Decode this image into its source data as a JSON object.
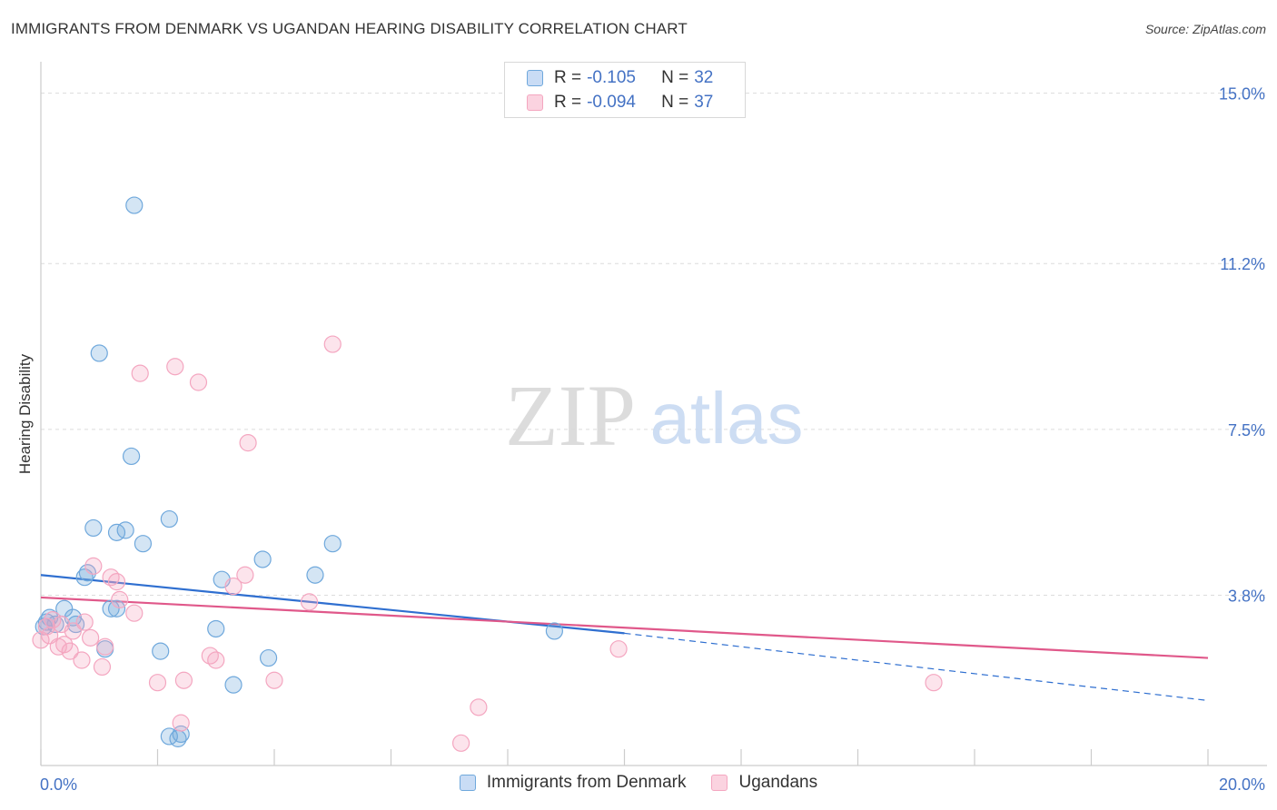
{
  "title": "IMMIGRANTS FROM DENMARK VS UGANDAN HEARING DISABILITY CORRELATION CHART",
  "source": "Source: ZipAtlas.com",
  "watermark": {
    "zip": "ZIP",
    "atlas": "atlas"
  },
  "legend_top": [
    {
      "r_label": "R =",
      "r_value": "-0.105",
      "n_label": "N =",
      "n_value": "32",
      "color": "#6fa8dc"
    },
    {
      "r_label": "R =",
      "r_value": "-0.094",
      "n_label": "N =",
      "n_value": "37",
      "color": "#f4a6c0"
    }
  ],
  "legend_bottom": [
    {
      "label": "Immigrants from Denmark",
      "color": "#6fa8dc"
    },
    {
      "label": "Ugandans",
      "color": "#f4a6c0"
    }
  ],
  "chart_data": {
    "type": "scatter",
    "title": "IMMIGRANTS FROM DENMARK VS UGANDAN HEARING DISABILITY CORRELATION CHART",
    "xlabel": "",
    "ylabel": "Hearing Disability",
    "xlim": [
      0,
      20
    ],
    "ylim": [
      0,
      15.5
    ],
    "x_tick_labels": [
      {
        "value": 0,
        "label": "0.0%"
      },
      {
        "value": 20,
        "label": "20.0%"
      }
    ],
    "y_tick_labels": [
      {
        "value": 3.8,
        "label": "3.8%"
      },
      {
        "value": 7.5,
        "label": "7.5%"
      },
      {
        "value": 11.2,
        "label": "11.2%"
      },
      {
        "value": 15.0,
        "label": "15.0%"
      }
    ],
    "grid": true,
    "legend_position": "top-center",
    "series": [
      {
        "name": "Immigrants from Denmark",
        "color": "#6fa8dc",
        "line_color": "#2f6fd0",
        "points": [
          [
            1.6,
            12.5
          ],
          [
            1.0,
            9.2
          ],
          [
            1.55,
            6.9
          ],
          [
            2.2,
            5.5
          ],
          [
            0.9,
            5.3
          ],
          [
            1.3,
            5.2
          ],
          [
            1.45,
            5.25
          ],
          [
            1.75,
            4.95
          ],
          [
            3.8,
            4.6
          ],
          [
            5.0,
            4.95
          ],
          [
            4.7,
            4.25
          ],
          [
            0.75,
            4.2
          ],
          [
            3.1,
            4.15
          ],
          [
            0.8,
            4.3
          ],
          [
            0.4,
            3.5
          ],
          [
            1.2,
            3.5
          ],
          [
            1.3,
            3.5
          ],
          [
            0.55,
            3.3
          ],
          [
            0.15,
            3.3
          ],
          [
            0.25,
            3.15
          ],
          [
            0.6,
            3.15
          ],
          [
            3.0,
            3.05
          ],
          [
            8.8,
            3.0
          ],
          [
            2.05,
            2.55
          ],
          [
            1.1,
            2.6
          ],
          [
            3.9,
            2.4
          ],
          [
            3.3,
            1.8
          ],
          [
            2.2,
            0.65
          ],
          [
            2.4,
            0.7
          ],
          [
            2.35,
            0.6
          ],
          [
            0.05,
            3.1
          ],
          [
            0.1,
            3.2
          ]
        ],
        "trend": {
          "x0": 0,
          "y0": 4.25,
          "x1": 10,
          "y1": 2.95,
          "dashed_to_x": 20,
          "dashed_to_y": 1.45
        }
      },
      {
        "name": "Ugandans",
        "color": "#f4a6c0",
        "line_color": "#e0588a",
        "points": [
          [
            5.0,
            9.4
          ],
          [
            2.3,
            8.9
          ],
          [
            1.7,
            8.75
          ],
          [
            2.7,
            8.55
          ],
          [
            3.55,
            7.2
          ],
          [
            0.9,
            4.45
          ],
          [
            1.2,
            4.2
          ],
          [
            1.3,
            4.1
          ],
          [
            3.5,
            4.25
          ],
          [
            3.3,
            4.0
          ],
          [
            1.35,
            3.7
          ],
          [
            4.6,
            3.65
          ],
          [
            1.6,
            3.4
          ],
          [
            0.35,
            3.15
          ],
          [
            0.75,
            3.2
          ],
          [
            0.55,
            3.0
          ],
          [
            0.85,
            2.85
          ],
          [
            0.0,
            2.8
          ],
          [
            0.3,
            2.65
          ],
          [
            0.5,
            2.55
          ],
          [
            1.1,
            2.65
          ],
          [
            2.9,
            2.45
          ],
          [
            3.0,
            2.35
          ],
          [
            0.7,
            2.35
          ],
          [
            1.05,
            2.2
          ],
          [
            9.9,
            2.6
          ],
          [
            4.0,
            1.9
          ],
          [
            2.45,
            1.9
          ],
          [
            2.0,
            1.85
          ],
          [
            15.3,
            1.85
          ],
          [
            7.5,
            1.3
          ],
          [
            2.4,
            0.95
          ],
          [
            7.2,
            0.5
          ],
          [
            0.1,
            3.1
          ],
          [
            0.2,
            3.25
          ],
          [
            0.15,
            2.9
          ],
          [
            0.4,
            2.7
          ]
        ],
        "trend": {
          "x0": 0,
          "y0": 3.75,
          "x1": 20,
          "y1": 2.4
        }
      }
    ]
  }
}
